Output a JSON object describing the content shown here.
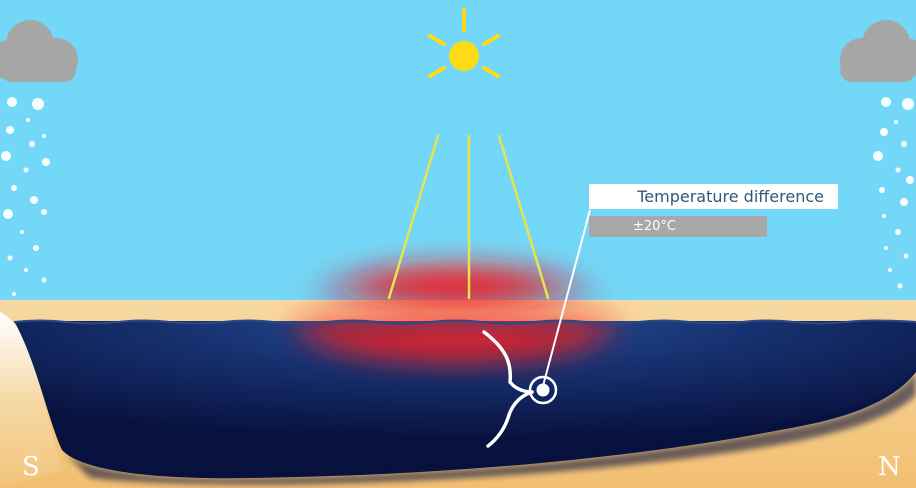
{
  "diagram": {
    "annotation": {
      "label": "Temperature difference",
      "value": "±20°C"
    },
    "directions": {
      "south": "S",
      "north": "N"
    },
    "colors": {
      "sky": "#73d8f8",
      "sun": "#fbdc16",
      "sun_rays": "#e6e64c",
      "cloud": "#a6a6a6",
      "ocean_surface": "#1f3f7c",
      "ocean_deep": "#08123f",
      "warm_water": "#ff1a14",
      "seabed": "#f2c98b",
      "annotation_text": "#2e5a78",
      "annotation_value_bg": "#a8a8a8"
    }
  }
}
